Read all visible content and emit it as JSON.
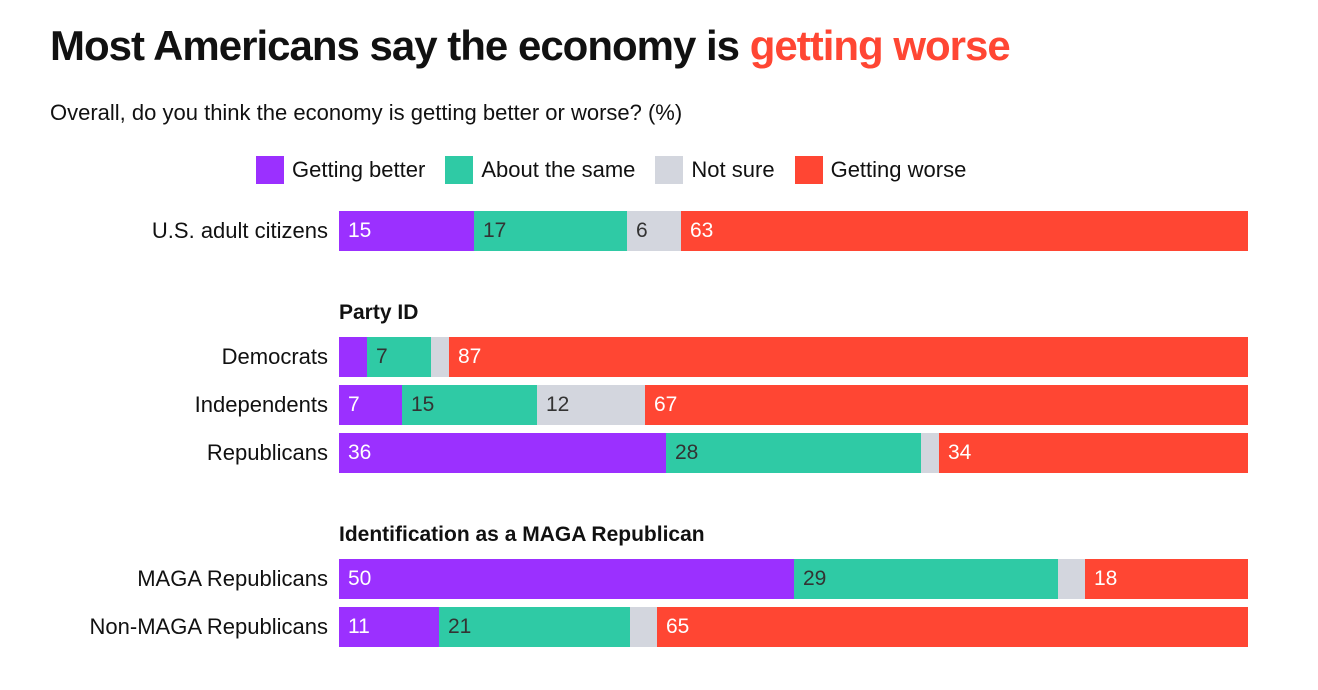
{
  "title_plain": "Most Americans say the economy is ",
  "title_highlight": "getting worse",
  "subtitle": "Overall, do you think the economy is getting better or worse? (%)",
  "colors": {
    "highlight": "#ff4633",
    "getting_better": "#9b30ff",
    "about_the_same": "#2fcaa5",
    "not_sure": "#d3d6de",
    "getting_worse": "#ff4633"
  },
  "legend": [
    {
      "label": "Getting better",
      "color": "#9b30ff"
    },
    {
      "label": "About the same",
      "color": "#2fcaa5"
    },
    {
      "label": "Not sure",
      "color": "#d3d6de"
    },
    {
      "label": "Getting worse",
      "color": "#ff4633"
    }
  ],
  "groups": {
    "party": "Party ID",
    "maga": "Identification as a MAGA Republican"
  },
  "chart_data": {
    "type": "bar",
    "orientation": "horizontal",
    "stacked": true,
    "series_names": [
      "Getting better",
      "About the same",
      "Not sure",
      "Getting worse"
    ],
    "rows": [
      {
        "label": "U.S. adult citizens",
        "values": [
          15,
          17,
          6,
          63
        ],
        "shown": [
          "15",
          "17",
          "6",
          "63"
        ]
      },
      {
        "label": "Democrats",
        "values": [
          3,
          7,
          2,
          87
        ],
        "shown": [
          "",
          "7",
          "",
          "87"
        ]
      },
      {
        "label": "Independents",
        "values": [
          7,
          15,
          12,
          67
        ],
        "shown": [
          "7",
          "15",
          "12",
          "67"
        ]
      },
      {
        "label": "Republicans",
        "values": [
          36,
          28,
          2,
          34
        ],
        "shown": [
          "36",
          "28",
          "",
          "34"
        ]
      },
      {
        "label": "MAGA Republicans",
        "values": [
          50,
          29,
          3,
          18
        ],
        "shown": [
          "50",
          "29",
          "",
          "18"
        ]
      },
      {
        "label": "Non-MAGA Republicans",
        "values": [
          11,
          21,
          3,
          65
        ],
        "shown": [
          "11",
          "21",
          "",
          "65"
        ]
      }
    ]
  }
}
